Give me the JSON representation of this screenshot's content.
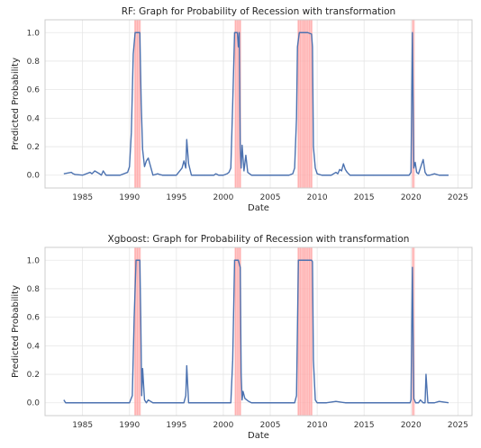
{
  "chart_data": [
    {
      "type": "line",
      "title": "RF: Graph for Probability of Recession with transformation",
      "xlabel": "Date",
      "ylabel": "Predicted Probability",
      "xlim": [
        1981.0,
        2026.5
      ],
      "ylim": [
        -0.09,
        1.09
      ],
      "xticks": [
        1985,
        1990,
        1995,
        2000,
        2005,
        2010,
        2015,
        2020,
        2025
      ],
      "yticks": [
        "0.0",
        "0.2",
        "0.4",
        "0.6",
        "0.8",
        "1.0"
      ],
      "grid": true,
      "recession_periods": [
        [
          1990.5,
          1991.2
        ],
        [
          2001.2,
          2001.9
        ],
        [
          2007.9,
          2009.5
        ],
        [
          2020.1,
          2020.4
        ]
      ],
      "series": [
        {
          "x": [
            1983.0,
            1983.8,
            1984.0,
            1984.2,
            1985.0,
            1985.8,
            1986.0,
            1986.3,
            1986.8,
            1987.0,
            1987.2,
            1987.5,
            1988.0,
            1989.0,
            1989.8,
            1990.0,
            1990.2,
            1990.4,
            1990.6,
            1990.8,
            1991.0,
            1991.1,
            1991.25,
            1991.4,
            1991.6,
            1991.8,
            1992.0,
            1992.5,
            1993.0,
            1993.2,
            1993.5,
            1994.0,
            1995.0,
            1995.6,
            1995.8,
            1996.0,
            1996.1,
            1996.3,
            1996.6,
            1997.0,
            1998.0,
            1999.0,
            1999.2,
            1999.5,
            2000.0,
            2000.4,
            2000.6,
            2000.8,
            2001.0,
            2001.2,
            2001.5,
            2001.6,
            2001.7,
            2001.8,
            2001.9,
            2002.0,
            2002.2,
            2002.4,
            2002.6,
            2002.8,
            2003.0,
            2004.0,
            2005.0,
            2006.0,
            2007.0,
            2007.4,
            2007.6,
            2007.8,
            2007.9,
            2008.1,
            2008.5,
            2009.0,
            2009.4,
            2009.5,
            2009.6,
            2009.8,
            2010.0,
            2010.5,
            2011.0,
            2011.5,
            2012.0,
            2012.2,
            2012.4,
            2012.6,
            2012.8,
            2013.0,
            2013.2,
            2013.5,
            2014.0,
            2015.0,
            2016.0,
            2017.0,
            2018.0,
            2019.0,
            2019.8,
            2020.0,
            2020.15,
            2020.3,
            2020.45,
            2020.6,
            2020.8,
            2021.0,
            2021.3,
            2021.5,
            2021.7,
            2022.0,
            2022.5,
            2023.0,
            2023.5,
            2024.0
          ],
          "y": [
            0.01,
            0.02,
            0.01,
            0.005,
            0.0,
            0.02,
            0.01,
            0.03,
            0.01,
            0.0,
            0.03,
            0.0,
            0.0,
            0.0,
            0.02,
            0.06,
            0.3,
            0.85,
            1.0,
            1.0,
            1.0,
            1.0,
            0.5,
            0.18,
            0.06,
            0.1,
            0.12,
            0.0,
            0.01,
            0.005,
            0.0,
            0.0,
            0.0,
            0.05,
            0.1,
            0.05,
            0.25,
            0.08,
            0.0,
            0.0,
            0.0,
            0.0,
            0.01,
            0.0,
            0.0,
            0.01,
            0.02,
            0.05,
            0.5,
            1.0,
            1.0,
            0.9,
            1.0,
            0.2,
            0.05,
            0.21,
            0.03,
            0.14,
            0.02,
            0.01,
            0.0,
            0.0,
            0.0,
            0.0,
            0.0,
            0.01,
            0.05,
            0.4,
            0.9,
            1.0,
            1.0,
            1.0,
            0.99,
            0.9,
            0.2,
            0.05,
            0.01,
            0.0,
            0.0,
            0.0,
            0.02,
            0.01,
            0.04,
            0.03,
            0.08,
            0.04,
            0.02,
            0.0,
            0.0,
            0.0,
            0.0,
            0.0,
            0.0,
            0.0,
            0.0,
            0.02,
            1.0,
            0.05,
            0.09,
            0.02,
            0.01,
            0.05,
            0.11,
            0.02,
            0.0,
            0.0,
            0.01,
            0.0,
            0.0,
            0.0
          ]
        }
      ]
    },
    {
      "type": "line",
      "title": "Xgboost: Graph for Probability of Recession with transformation",
      "xlabel": "Date",
      "ylabel": "Predicted Probability",
      "xlim": [
        1981.0,
        2026.5
      ],
      "ylim": [
        -0.09,
        1.09
      ],
      "xticks": [
        1985,
        1990,
        1995,
        2000,
        2005,
        2010,
        2015,
        2020,
        2025
      ],
      "yticks": [
        "0.0",
        "0.2",
        "0.4",
        "0.6",
        "0.8",
        "1.0"
      ],
      "grid": true,
      "recession_periods": [
        [
          1990.5,
          1991.2
        ],
        [
          2001.2,
          2001.9
        ],
        [
          2007.9,
          2009.5
        ],
        [
          2020.1,
          2020.4
        ]
      ],
      "series": [
        {
          "x": [
            1983.0,
            1983.2,
            1984.0,
            1986.0,
            1988.0,
            1989.0,
            1990.0,
            1990.3,
            1990.5,
            1990.7,
            1991.0,
            1991.1,
            1991.2,
            1991.3,
            1991.4,
            1991.6,
            1991.8,
            1992.0,
            1992.5,
            1995.0,
            1995.8,
            1996.0,
            1996.1,
            1996.3,
            1998.0,
            2000.0,
            2000.8,
            2001.0,
            2001.2,
            2001.6,
            2001.8,
            2001.9,
            2002.0,
            2002.1,
            2002.3,
            2002.5,
            2002.7,
            2003.0,
            2005.0,
            2007.0,
            2007.6,
            2007.8,
            2008.0,
            2008.5,
            2009.0,
            2009.4,
            2009.5,
            2009.6,
            2009.8,
            2010.0,
            2011.0,
            2012.0,
            2013.0,
            2015.0,
            2017.0,
            2019.0,
            2019.9,
            2020.0,
            2020.15,
            2020.3,
            2020.5,
            2020.8,
            2021.0,
            2021.3,
            2021.5,
            2021.6,
            2021.8,
            2022.5,
            2023.0,
            2024.0
          ],
          "y": [
            0.02,
            0.0,
            0.0,
            0.0,
            0.0,
            0.0,
            0.0,
            0.05,
            0.6,
            1.0,
            1.0,
            1.0,
            0.6,
            0.05,
            0.24,
            0.02,
            0.0,
            0.02,
            0.0,
            0.0,
            0.0,
            0.05,
            0.26,
            0.0,
            0.0,
            0.0,
            0.0,
            0.3,
            1.0,
            1.0,
            0.95,
            0.2,
            0.02,
            0.08,
            0.03,
            0.02,
            0.01,
            0.0,
            0.0,
            0.0,
            0.0,
            0.05,
            1.0,
            1.0,
            1.0,
            1.0,
            0.99,
            0.3,
            0.02,
            0.0,
            0.0,
            0.01,
            0.0,
            0.0,
            0.0,
            0.0,
            0.0,
            0.02,
            0.95,
            0.03,
            0.0,
            0.0,
            0.02,
            0.0,
            0.0,
            0.2,
            0.0,
            0.0,
            0.01,
            0.0
          ]
        }
      ]
    }
  ]
}
